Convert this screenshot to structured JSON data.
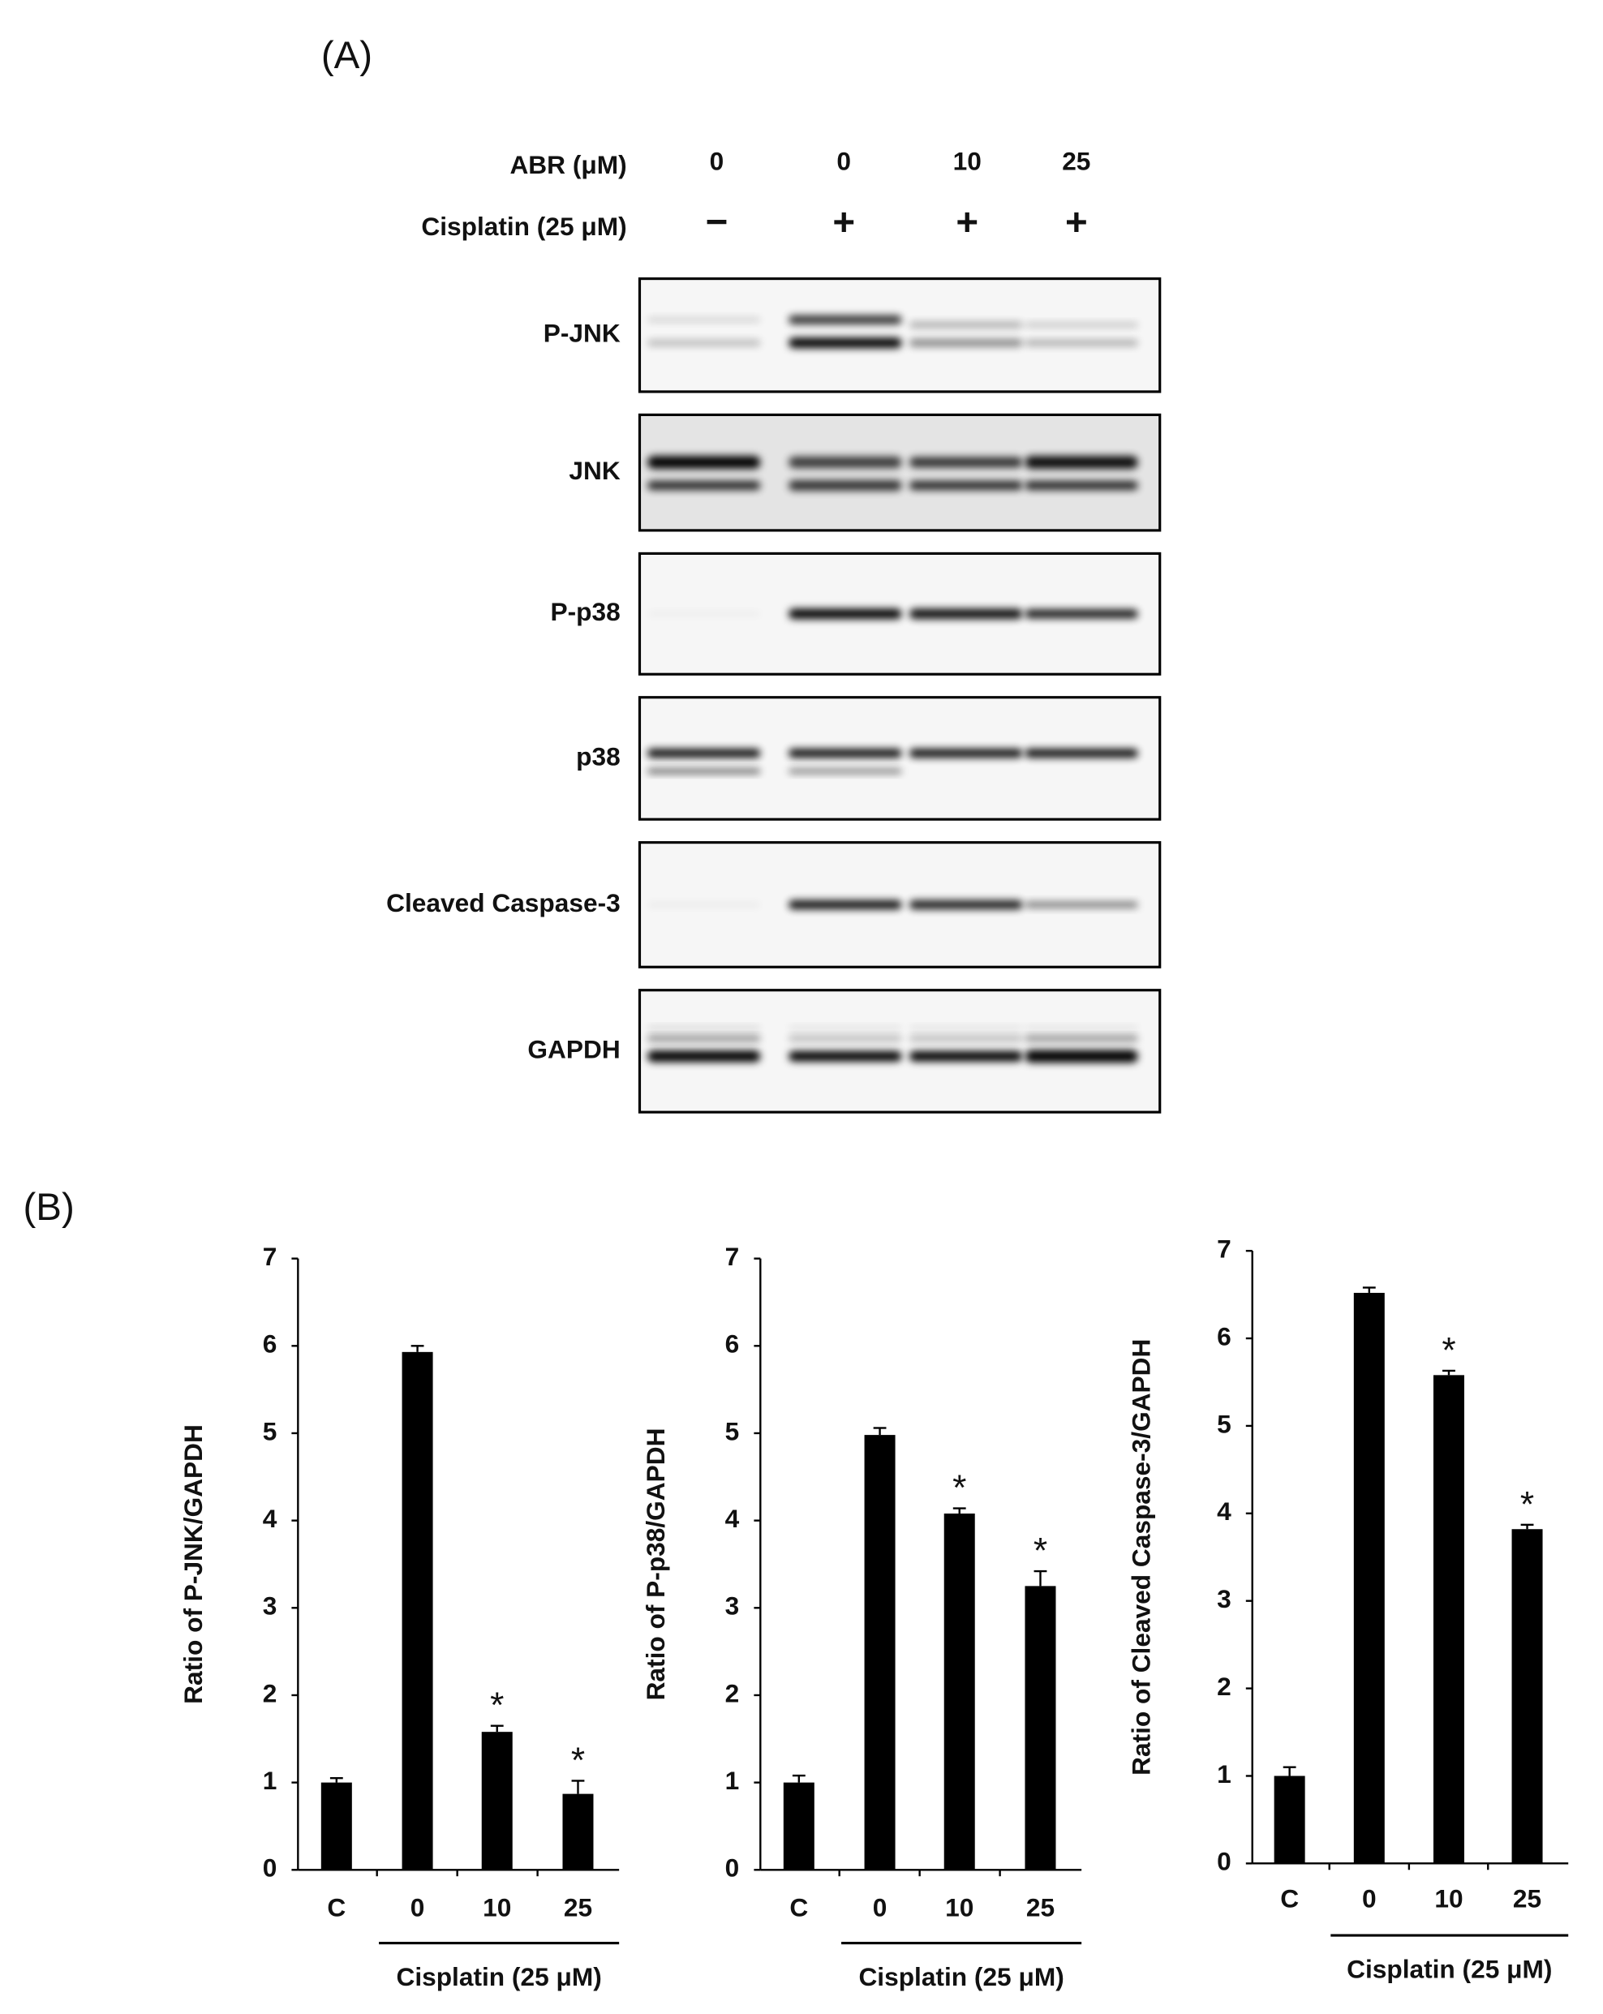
{
  "panel_a": {
    "label": "(A)",
    "conditions": [
      {
        "label": "ABR (μM)",
        "values": [
          "0",
          "0",
          "10",
          "25"
        ]
      },
      {
        "label": "Cisplatin (25 μM)",
        "values": [
          "−",
          "+",
          "+",
          "+"
        ]
      }
    ],
    "blots": [
      "P-JNK",
      "JNK",
      "P-p38",
      "p38",
      "Cleaved Caspase-3",
      "GAPDH"
    ]
  },
  "panel_b_label": "(B)",
  "chart_data": [
    {
      "type": "bar",
      "y_label": "Ratio of P-JNK/GAPDH",
      "categories": [
        "C",
        "0",
        "10",
        "25"
      ],
      "values": [
        1.0,
        5.93,
        1.58,
        0.87
      ],
      "errors": [
        0.05,
        0.07,
        0.07,
        0.15
      ],
      "significance": [
        null,
        null,
        "*",
        "*"
      ],
      "group_label": "Cisplatin (25 μM)",
      "color": "#000000",
      "ylim": [
        0,
        7
      ],
      "yticks": [
        0,
        1,
        2,
        3,
        4,
        5,
        6,
        7
      ]
    },
    {
      "type": "bar",
      "y_label": "Ratio of P-p38/GAPDH",
      "categories": [
        "C",
        "0",
        "10",
        "25"
      ],
      "values": [
        1.0,
        4.98,
        4.08,
        3.25
      ],
      "errors": [
        0.08,
        0.08,
        0.06,
        0.17
      ],
      "significance": [
        null,
        null,
        "*",
        "*"
      ],
      "group_label": "Cisplatin (25 μM)",
      "color": "#000000",
      "ylim": [
        0,
        7
      ],
      "yticks": [
        0,
        1,
        2,
        3,
        4,
        5,
        6,
        7
      ]
    },
    {
      "type": "bar",
      "y_label": "Ratio of Cleaved Caspase-3/GAPDH",
      "categories": [
        "C",
        "0",
        "10",
        "25"
      ],
      "values": [
        1.0,
        6.52,
        5.58,
        3.82
      ],
      "errors": [
        0.1,
        0.06,
        0.05,
        0.05
      ],
      "significance": [
        null,
        null,
        "*",
        "*"
      ],
      "group_label": "Cisplatin (25 μM)",
      "color": "#000000",
      "ylim": [
        0,
        7
      ],
      "yticks": [
        0,
        1,
        2,
        3,
        4,
        5,
        6,
        7
      ]
    }
  ]
}
